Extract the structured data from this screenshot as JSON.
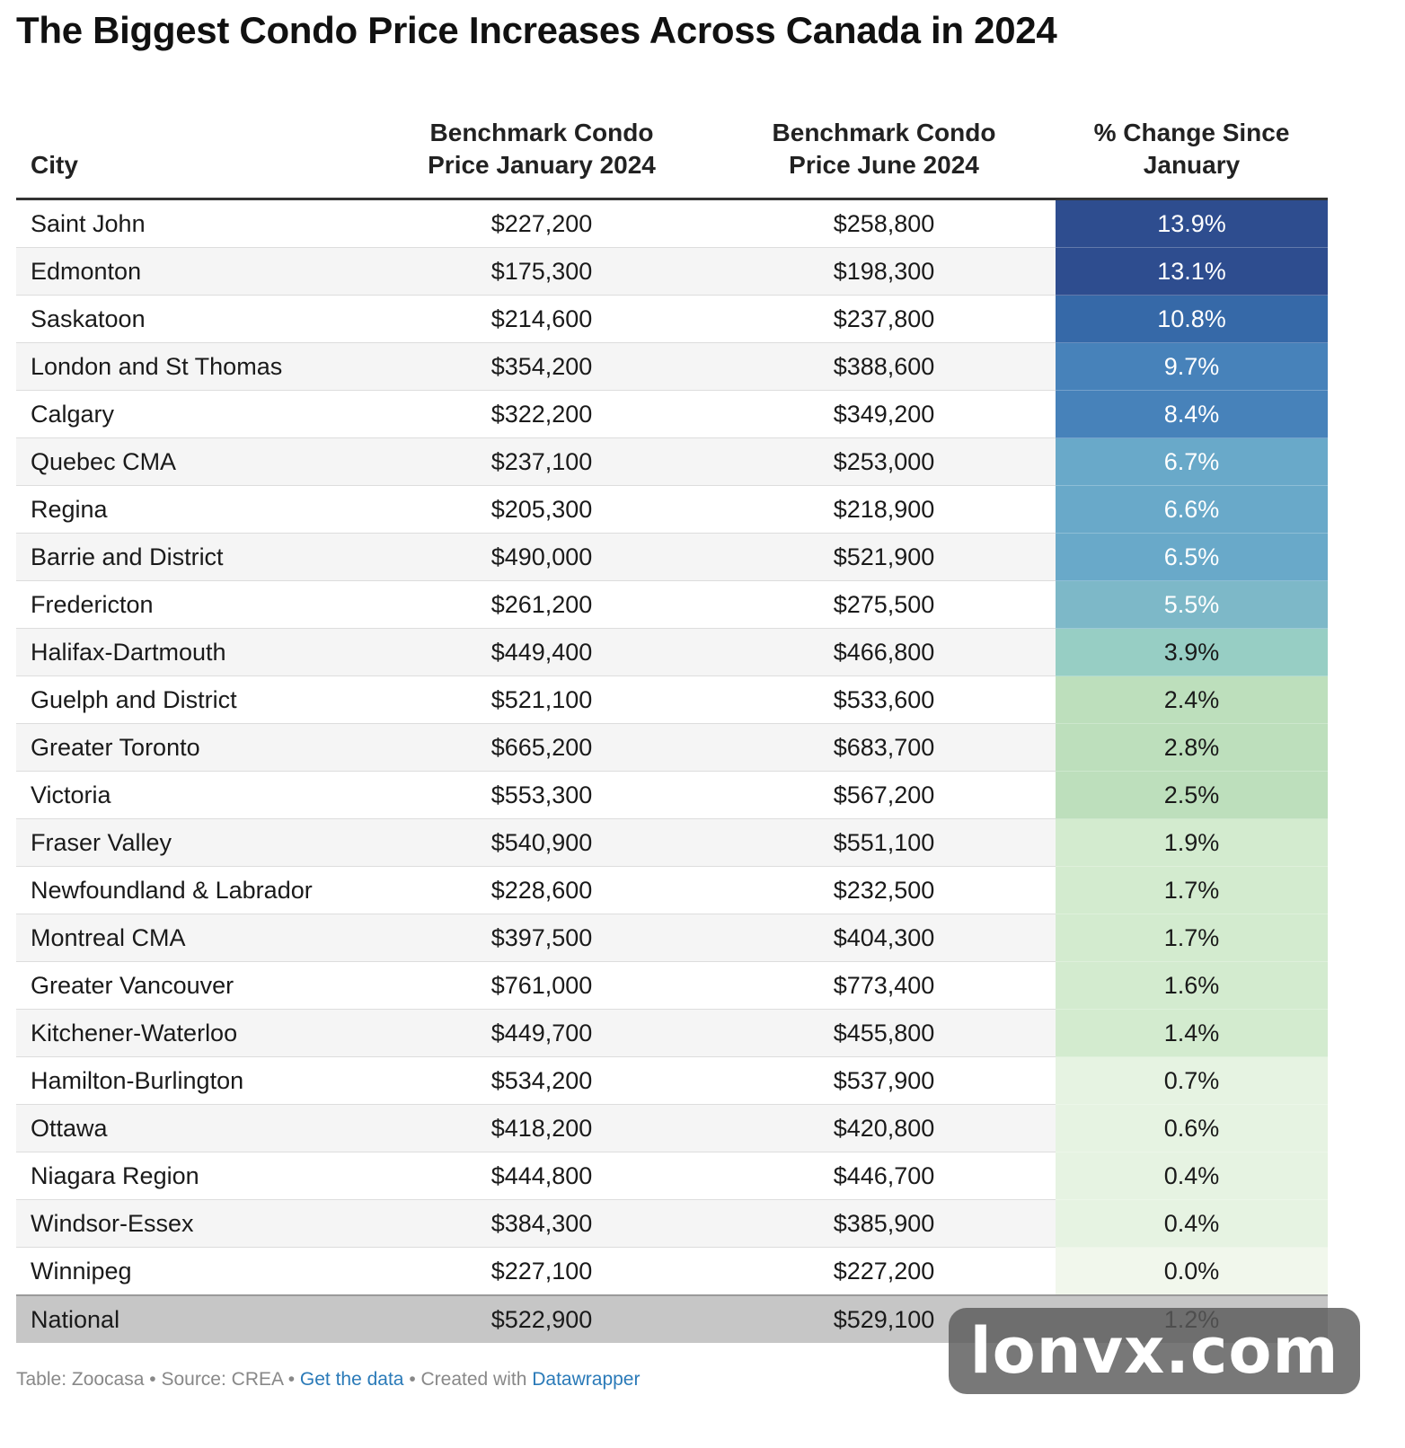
{
  "title": "The Biggest Condo Price Increases Across Canada in 2024",
  "chart_data": {
    "type": "table",
    "title": "The Biggest Condo Price Increases Across Canada in 2024",
    "columns": [
      "City",
      "Benchmark Condo Price January 2024",
      "Benchmark Condo Price June 2024",
      "% Change Since January"
    ],
    "header": {
      "city": "City",
      "jan": [
        "Benchmark Condo",
        "Price January 2024"
      ],
      "jun": [
        "Benchmark Condo",
        "Price June 2024"
      ],
      "pct": [
        "% Change Since",
        "January"
      ]
    },
    "rows": [
      {
        "city": "Saint John",
        "jan": "$227,200",
        "jun": "$258,800",
        "pct": "13.9%",
        "pct_value": 13.9
      },
      {
        "city": "Edmonton",
        "jan": "$175,300",
        "jun": "$198,300",
        "pct": "13.1%",
        "pct_value": 13.1
      },
      {
        "city": "Saskatoon",
        "jan": "$214,600",
        "jun": "$237,800",
        "pct": "10.8%",
        "pct_value": 10.8
      },
      {
        "city": "London and St Thomas",
        "jan": "$354,200",
        "jun": "$388,600",
        "pct": "9.7%",
        "pct_value": 9.7
      },
      {
        "city": "Calgary",
        "jan": "$322,200",
        "jun": "$349,200",
        "pct": "8.4%",
        "pct_value": 8.4
      },
      {
        "city": "Quebec CMA",
        "jan": "$237,100",
        "jun": "$253,000",
        "pct": "6.7%",
        "pct_value": 6.7
      },
      {
        "city": "Regina",
        "jan": "$205,300",
        "jun": "$218,900",
        "pct": "6.6%",
        "pct_value": 6.6
      },
      {
        "city": "Barrie and District",
        "jan": "$490,000",
        "jun": "$521,900",
        "pct": "6.5%",
        "pct_value": 6.5
      },
      {
        "city": "Fredericton",
        "jan": "$261,200",
        "jun": "$275,500",
        "pct": "5.5%",
        "pct_value": 5.5
      },
      {
        "city": "Halifax-Dartmouth",
        "jan": "$449,400",
        "jun": "$466,800",
        "pct": "3.9%",
        "pct_value": 3.9
      },
      {
        "city": "Guelph and District",
        "jan": "$521,100",
        "jun": "$533,600",
        "pct": "2.4%",
        "pct_value": 2.4
      },
      {
        "city": "Greater Toronto",
        "jan": "$665,200",
        "jun": "$683,700",
        "pct": "2.8%",
        "pct_value": 2.8
      },
      {
        "city": "Victoria",
        "jan": "$553,300",
        "jun": "$567,200",
        "pct": "2.5%",
        "pct_value": 2.5
      },
      {
        "city": "Fraser Valley",
        "jan": "$540,900",
        "jun": "$551,100",
        "pct": "1.9%",
        "pct_value": 1.9
      },
      {
        "city": "Newfoundland & Labrador",
        "jan": "$228,600",
        "jun": "$232,500",
        "pct": "1.7%",
        "pct_value": 1.7
      },
      {
        "city": "Montreal CMA",
        "jan": "$397,500",
        "jun": "$404,300",
        "pct": "1.7%",
        "pct_value": 1.7
      },
      {
        "city": "Greater Vancouver",
        "jan": "$761,000",
        "jun": "$773,400",
        "pct": "1.6%",
        "pct_value": 1.6
      },
      {
        "city": "Kitchener-Waterloo",
        "jan": "$449,700",
        "jun": "$455,800",
        "pct": "1.4%",
        "pct_value": 1.4
      },
      {
        "city": "Hamilton-Burlington",
        "jan": "$534,200",
        "jun": "$537,900",
        "pct": "0.7%",
        "pct_value": 0.7
      },
      {
        "city": "Ottawa",
        "jan": "$418,200",
        "jun": "$420,800",
        "pct": "0.6%",
        "pct_value": 0.6
      },
      {
        "city": "Niagara Region",
        "jan": "$444,800",
        "jun": "$446,700",
        "pct": "0.4%",
        "pct_value": 0.4
      },
      {
        "city": "Windsor-Essex",
        "jan": "$384,300",
        "jun": "$385,900",
        "pct": "0.4%",
        "pct_value": 0.4
      },
      {
        "city": "Winnipeg",
        "jan": "$227,100",
        "jun": "$227,200",
        "pct": "0.0%",
        "pct_value": 0.0
      }
    ],
    "total_row": {
      "city": "National",
      "jan": "$522,900",
      "jun": "$529,100",
      "pct": "1.2%"
    }
  },
  "colors": {
    "national_row": "#c6c6c6",
    "header_rule": "#333333",
    "link": "#2a7ab8",
    "pct_scale": [
      {
        "min": 13.0,
        "color": "#2e4d8f",
        "text": "#ffffff"
      },
      {
        "min": 10.0,
        "color": "#3669a8",
        "text": "#ffffff"
      },
      {
        "min": 8.0,
        "color": "#4782ba",
        "text": "#ffffff"
      },
      {
        "min": 6.0,
        "color": "#69a9c9",
        "text": "#ffffff"
      },
      {
        "min": 5.0,
        "color": "#7db8c8",
        "text": "#ffffff"
      },
      {
        "min": 3.0,
        "color": "#97cec4",
        "text": "#1a1a1a"
      },
      {
        "min": 2.0,
        "color": "#bddfbc",
        "text": "#1a1a1a"
      },
      {
        "min": 1.0,
        "color": "#d3ebcf",
        "text": "#1a1a1a"
      },
      {
        "min": 0.3,
        "color": "#e6f3e2",
        "text": "#1a1a1a"
      },
      {
        "min": -100,
        "color": "#f1f7ec",
        "text": "#1a1a1a"
      }
    ]
  },
  "footer": {
    "table_credit": "Table: Zoocasa",
    "source": "Source: CREA",
    "get_data": "Get the data",
    "created": "Created with",
    "datawrapper": "Datawrapper",
    "separator": " • "
  },
  "watermark": "lonvx.com"
}
